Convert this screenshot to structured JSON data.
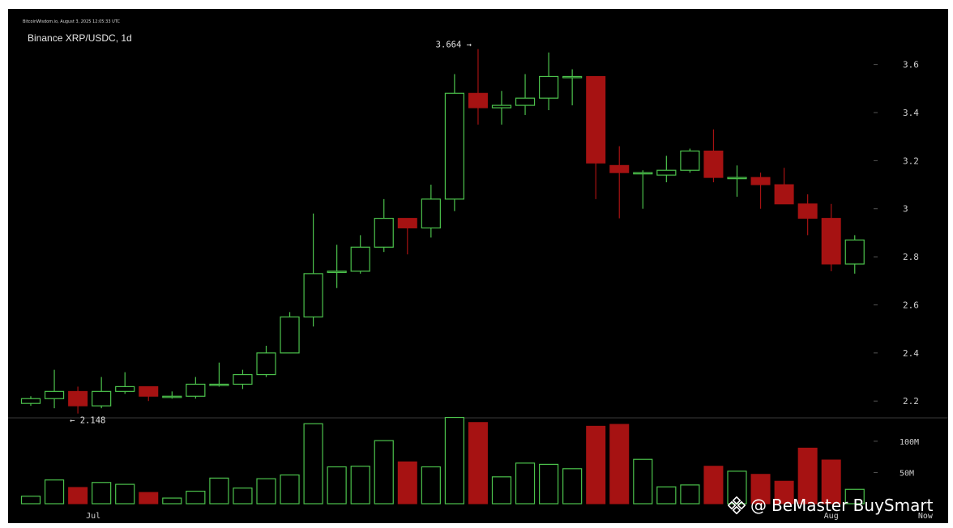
{
  "source_line": "BitcoinWisdom.io, August 3, 2025 12:05:33 UTC",
  "title": "Binance XRP/USDC, 1d",
  "watermark": {
    "at": "@",
    "text": "BeMaster BuySmart"
  },
  "colors": {
    "up": "#4cc24c",
    "down": "#a61212",
    "background": "#000000",
    "text": "#cfcfcf"
  },
  "chart_data": {
    "type": "candlestick",
    "price_axis": {
      "ylim": [
        2.13,
        3.72
      ],
      "ticks": [
        "2.2",
        "2.4",
        "2.6",
        "2.8",
        "3",
        "3.2",
        "3.4",
        "3.6"
      ]
    },
    "volume_axis": {
      "ylim": [
        0,
        140
      ],
      "ticks": [
        "50M",
        "100M"
      ]
    },
    "x_labels": [
      {
        "index": 3,
        "label": "Jul"
      },
      {
        "index": 34,
        "label": "Aug"
      },
      {
        "index": 38,
        "label": "Now"
      }
    ],
    "annotations": [
      {
        "index": 19,
        "price": 3.664,
        "text": "3.664 →"
      },
      {
        "index": 2,
        "price": 2.148,
        "text": "← 2.148"
      }
    ],
    "candles": [
      {
        "o": 2.19,
        "h": 2.22,
        "l": 2.18,
        "c": 2.21,
        "v": 12
      },
      {
        "o": 2.21,
        "h": 2.33,
        "l": 2.17,
        "c": 2.24,
        "v": 38
      },
      {
        "o": 2.24,
        "h": 2.26,
        "l": 2.148,
        "c": 2.18,
        "v": 26
      },
      {
        "o": 2.18,
        "h": 2.3,
        "l": 2.17,
        "c": 2.24,
        "v": 34
      },
      {
        "o": 2.24,
        "h": 2.32,
        "l": 2.23,
        "c": 2.26,
        "v": 31
      },
      {
        "o": 2.26,
        "h": 2.26,
        "l": 2.2,
        "c": 2.22,
        "v": 18
      },
      {
        "o": 2.22,
        "h": 2.24,
        "l": 2.21,
        "c": 2.22,
        "v": 9
      },
      {
        "o": 2.22,
        "h": 2.3,
        "l": 2.21,
        "c": 2.27,
        "v": 20
      },
      {
        "o": 2.27,
        "h": 2.36,
        "l": 2.26,
        "c": 2.27,
        "v": 41
      },
      {
        "o": 2.27,
        "h": 2.33,
        "l": 2.25,
        "c": 2.31,
        "v": 25
      },
      {
        "o": 2.31,
        "h": 2.43,
        "l": 2.3,
        "c": 2.4,
        "v": 40
      },
      {
        "o": 2.4,
        "h": 2.57,
        "l": 2.4,
        "c": 2.55,
        "v": 46
      },
      {
        "o": 2.55,
        "h": 2.98,
        "l": 2.51,
        "c": 2.73,
        "v": 128
      },
      {
        "o": 2.74,
        "h": 2.85,
        "l": 2.67,
        "c": 2.74,
        "v": 59
      },
      {
        "o": 2.74,
        "h": 2.89,
        "l": 2.73,
        "c": 2.84,
        "v": 60
      },
      {
        "o": 2.84,
        "h": 3.04,
        "l": 2.82,
        "c": 2.96,
        "v": 101
      },
      {
        "o": 2.96,
        "h": 2.96,
        "l": 2.81,
        "c": 2.92,
        "v": 67
      },
      {
        "o": 2.92,
        "h": 3.1,
        "l": 2.88,
        "c": 3.04,
        "v": 59
      },
      {
        "o": 3.04,
        "h": 3.56,
        "l": 2.99,
        "c": 3.48,
        "v": 138
      },
      {
        "o": 3.48,
        "h": 3.664,
        "l": 3.35,
        "c": 3.42,
        "v": 130
      },
      {
        "o": 3.42,
        "h": 3.49,
        "l": 3.35,
        "c": 3.43,
        "v": 43
      },
      {
        "o": 3.43,
        "h": 3.56,
        "l": 3.39,
        "c": 3.46,
        "v": 65
      },
      {
        "o": 3.46,
        "h": 3.65,
        "l": 3.41,
        "c": 3.55,
        "v": 63
      },
      {
        "o": 3.55,
        "h": 3.58,
        "l": 3.43,
        "c": 3.55,
        "v": 56
      },
      {
        "o": 3.55,
        "h": 3.55,
        "l": 3.04,
        "c": 3.19,
        "v": 124
      },
      {
        "o": 3.18,
        "h": 3.26,
        "l": 2.96,
        "c": 3.15,
        "v": 127
      },
      {
        "o": 3.15,
        "h": 3.16,
        "l": 3.0,
        "c": 3.15,
        "v": 71
      },
      {
        "o": 3.14,
        "h": 3.22,
        "l": 3.11,
        "c": 3.16,
        "v": 27
      },
      {
        "o": 3.16,
        "h": 3.25,
        "l": 3.15,
        "c": 3.24,
        "v": 30
      },
      {
        "o": 3.24,
        "h": 3.33,
        "l": 3.11,
        "c": 3.13,
        "v": 60
      },
      {
        "o": 3.13,
        "h": 3.18,
        "l": 3.05,
        "c": 3.13,
        "v": 52
      },
      {
        "o": 3.13,
        "h": 3.15,
        "l": 3.0,
        "c": 3.1,
        "v": 47
      },
      {
        "o": 3.1,
        "h": 3.17,
        "l": 3.02,
        "c": 3.02,
        "v": 36
      },
      {
        "o": 3.02,
        "h": 3.06,
        "l": 2.89,
        "c": 2.96,
        "v": 89
      },
      {
        "o": 2.96,
        "h": 3.02,
        "l": 2.74,
        "c": 2.77,
        "v": 70
      },
      {
        "o": 2.77,
        "h": 2.89,
        "l": 2.73,
        "c": 2.87,
        "v": 23
      }
    ]
  }
}
